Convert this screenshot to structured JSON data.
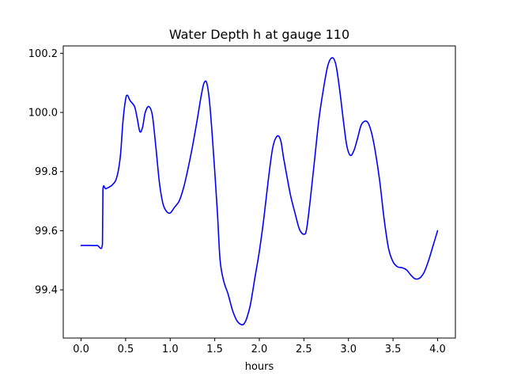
{
  "chart_data": {
    "type": "line",
    "title": "Water Depth h at gauge 110",
    "xlabel": "hours",
    "ylabel": "",
    "xlim": [
      -0.2,
      4.2
    ],
    "ylim": [
      99.237,
      100.225
    ],
    "xticks": [
      0.0,
      0.5,
      1.0,
      1.5,
      2.0,
      2.5,
      3.0,
      3.5,
      4.0
    ],
    "xtick_labels": [
      "0.0",
      "0.5",
      "1.0",
      "1.5",
      "2.0",
      "2.5",
      "3.0",
      "3.5",
      "4.0"
    ],
    "yticks": [
      99.4,
      99.6,
      99.8,
      100.0,
      100.2
    ],
    "ytick_labels": [
      "99.4",
      "99.6",
      "99.8",
      "100.0",
      "100.2"
    ],
    "grid": false,
    "series": [
      {
        "color": "#0000ff",
        "x": [
          0.0,
          0.1,
          0.18,
          0.24,
          0.245,
          0.28,
          0.35,
          0.4,
          0.44,
          0.47,
          0.5,
          0.52,
          0.55,
          0.6,
          0.63,
          0.66,
          0.69,
          0.72,
          0.76,
          0.8,
          0.84,
          0.88,
          0.92,
          0.96,
          1.0,
          1.05,
          1.1,
          1.15,
          1.2,
          1.25,
          1.3,
          1.35,
          1.38,
          1.41,
          1.44,
          1.47,
          1.5,
          1.53,
          1.56,
          1.6,
          1.65,
          1.7,
          1.75,
          1.8,
          1.83,
          1.86,
          1.9,
          1.95,
          2.0,
          2.05,
          2.1,
          2.15,
          2.2,
          2.24,
          2.27,
          2.3,
          2.35,
          2.4,
          2.45,
          2.5,
          2.53,
          2.57,
          2.62,
          2.67,
          2.72,
          2.77,
          2.82,
          2.86,
          2.9,
          2.94,
          2.98,
          3.02,
          3.06,
          3.1,
          3.14,
          3.18,
          3.22,
          3.26,
          3.3,
          3.35,
          3.4,
          3.45,
          3.5,
          3.55,
          3.6,
          3.65,
          3.7,
          3.75,
          3.8,
          3.85,
          3.9,
          3.95,
          4.0
        ],
        "y": [
          99.55,
          99.55,
          99.55,
          99.555,
          99.737,
          99.742,
          99.755,
          99.78,
          99.85,
          99.97,
          100.045,
          100.058,
          100.04,
          100.02,
          99.98,
          99.935,
          99.95,
          100.0,
          100.02,
          99.99,
          99.88,
          99.76,
          99.69,
          99.665,
          99.66,
          99.68,
          99.7,
          99.745,
          99.81,
          99.885,
          99.97,
          100.06,
          100.1,
          100.1,
          100.04,
          99.93,
          99.8,
          99.66,
          99.5,
          99.43,
          99.385,
          99.33,
          99.295,
          99.282,
          99.286,
          99.305,
          99.35,
          99.44,
          99.53,
          99.64,
          99.77,
          99.88,
          99.92,
          99.905,
          99.85,
          99.8,
          99.72,
          99.66,
          99.605,
          99.588,
          99.605,
          99.7,
          99.84,
          99.98,
          100.08,
          100.16,
          100.185,
          100.16,
          100.08,
          99.98,
          99.89,
          99.855,
          99.87,
          99.91,
          99.955,
          99.97,
          99.965,
          99.93,
          99.87,
          99.77,
          99.64,
          99.54,
          99.495,
          99.478,
          99.475,
          99.468,
          99.45,
          99.437,
          99.44,
          99.46,
          99.5,
          99.55,
          99.6
        ]
      }
    ]
  }
}
